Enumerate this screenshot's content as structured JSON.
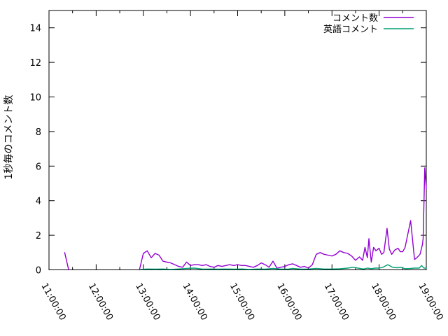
{
  "chart_data": {
    "type": "line",
    "title": "",
    "xlabel": "",
    "ylabel": "1秒毎のコメント数",
    "ylim": [
      0,
      15
    ],
    "yticks": [
      0,
      2,
      4,
      6,
      8,
      10,
      12,
      14
    ],
    "x_hours": [
      11,
      12,
      13,
      14,
      15,
      16,
      17,
      18,
      19
    ],
    "x_tick_labels": [
      "11:00:00",
      "12:00:00",
      "13:00:00",
      "14:00:00",
      "15:00:00",
      "16:00:00",
      "17:00:00",
      "18:00:00",
      "19:00:00"
    ],
    "x_minor_hours": [
      11.5,
      12.5,
      13.5,
      14.5,
      15.5,
      16.5,
      17.5,
      18.5
    ],
    "grid": false,
    "legend_position": "top-right-inside",
    "series": [
      {
        "id": "comments",
        "name": "コメント数",
        "color": "#9400D3",
        "segments": [
          [
            [
              11.333,
              1.0
            ],
            [
              11.417,
              0
            ]
          ],
          [
            [
              12.917,
              0
            ],
            [
              13.0,
              0.95
            ],
            [
              13.083,
              1.1
            ],
            [
              13.167,
              0.7
            ],
            [
              13.25,
              0.95
            ],
            [
              13.333,
              0.85
            ],
            [
              13.417,
              0.5
            ],
            [
              13.5,
              0.45
            ],
            [
              13.583,
              0.4
            ],
            [
              13.667,
              0.3
            ],
            [
              13.75,
              0.2
            ],
            [
              13.833,
              0.15
            ],
            [
              13.917,
              0.45
            ],
            [
              14.0,
              0.25
            ],
            [
              14.083,
              0.3
            ],
            [
              14.167,
              0.3
            ],
            [
              14.25,
              0.25
            ],
            [
              14.333,
              0.3
            ],
            [
              14.417,
              0.2
            ],
            [
              14.5,
              0.15
            ],
            [
              14.583,
              0.25
            ],
            [
              14.667,
              0.2
            ],
            [
              14.75,
              0.25
            ],
            [
              14.833,
              0.3
            ],
            [
              14.917,
              0.25
            ],
            [
              15.0,
              0.3
            ],
            [
              15.083,
              0.25
            ],
            [
              15.167,
              0.25
            ],
            [
              15.25,
              0.2
            ],
            [
              15.333,
              0.15
            ],
            [
              15.417,
              0.25
            ],
            [
              15.5,
              0.4
            ],
            [
              15.583,
              0.3
            ],
            [
              15.667,
              0.15
            ],
            [
              15.75,
              0.5
            ],
            [
              15.833,
              0.1
            ],
            [
              15.917,
              0.15
            ],
            [
              16.0,
              0.2
            ],
            [
              16.083,
              0.3
            ],
            [
              16.167,
              0.35
            ],
            [
              16.25,
              0.25
            ],
            [
              16.333,
              0.15
            ],
            [
              16.417,
              0.2
            ],
            [
              16.5,
              0.1
            ],
            [
              16.583,
              0.3
            ],
            [
              16.667,
              0.9
            ],
            [
              16.75,
              1.0
            ],
            [
              16.833,
              0.9
            ],
            [
              16.917,
              0.85
            ],
            [
              17.0,
              0.8
            ],
            [
              17.083,
              0.9
            ],
            [
              17.167,
              1.1
            ],
            [
              17.25,
              1.0
            ],
            [
              17.333,
              0.95
            ],
            [
              17.417,
              0.8
            ],
            [
              17.5,
              0.55
            ],
            [
              17.583,
              0.75
            ],
            [
              17.65,
              0.55
            ],
            [
              17.7,
              1.3
            ],
            [
              17.75,
              0.7
            ],
            [
              17.783,
              1.8
            ],
            [
              17.833,
              0.45
            ],
            [
              17.883,
              1.3
            ],
            [
              17.933,
              1.1
            ],
            [
              18.0,
              1.25
            ],
            [
              18.05,
              0.9
            ],
            [
              18.1,
              1.0
            ],
            [
              18.167,
              2.4
            ],
            [
              18.217,
              1.2
            ],
            [
              18.267,
              0.9
            ],
            [
              18.333,
              1.15
            ],
            [
              18.4,
              1.25
            ],
            [
              18.45,
              1.05
            ],
            [
              18.5,
              1.05
            ],
            [
              18.55,
              1.3
            ],
            [
              18.667,
              2.85
            ],
            [
              18.75,
              0.6
            ],
            [
              18.8,
              0.7
            ],
            [
              18.867,
              0.9
            ],
            [
              18.917,
              1.45
            ],
            [
              18.933,
              1.8
            ],
            [
              18.967,
              5.9
            ],
            [
              19.0,
              4.7
            ]
          ]
        ]
      },
      {
        "id": "english-comments",
        "name": "英語コメント",
        "color": "#009E73",
        "segments": [
          [
            [
              12.95,
              0.03
            ],
            [
              13.083,
              0.05
            ],
            [
              13.25,
              0.04
            ],
            [
              13.417,
              0.05
            ],
            [
              13.583,
              0.03
            ],
            [
              13.75,
              0.05
            ],
            [
              13.917,
              0.08
            ],
            [
              14.083,
              0.1
            ],
            [
              14.25,
              0.04
            ],
            [
              14.417,
              0.05
            ],
            [
              14.583,
              0.04
            ],
            [
              14.75,
              0.05
            ],
            [
              14.917,
              0.04
            ],
            [
              15.083,
              0.05
            ],
            [
              15.25,
              0.03
            ],
            [
              15.417,
              0.05
            ],
            [
              15.583,
              0.04
            ],
            [
              15.75,
              0.08
            ],
            [
              15.917,
              0.04
            ],
            [
              16.083,
              0.05
            ],
            [
              16.167,
              0.08
            ],
            [
              16.333,
              0.04
            ],
            [
              16.5,
              0.05
            ],
            [
              16.667,
              0.08
            ],
            [
              16.833,
              0.05
            ],
            [
              17.0,
              0.05
            ],
            [
              17.167,
              0.06
            ],
            [
              17.333,
              0.1
            ],
            [
              17.45,
              0.15
            ],
            [
              17.55,
              0.1
            ],
            [
              17.667,
              0.05
            ],
            [
              17.75,
              0.1
            ],
            [
              17.833,
              0.07
            ],
            [
              17.917,
              0.1
            ],
            [
              18.0,
              0.1
            ],
            [
              18.083,
              0.15
            ],
            [
              18.183,
              0.3
            ],
            [
              18.283,
              0.15
            ],
            [
              18.383,
              0.12
            ],
            [
              18.45,
              0.15
            ],
            [
              18.55,
              0.07
            ],
            [
              18.667,
              0.08
            ],
            [
              18.75,
              0.1
            ],
            [
              18.85,
              0.1
            ],
            [
              18.9,
              0.25
            ],
            [
              18.95,
              0.1
            ],
            [
              19.0,
              0.1
            ]
          ]
        ]
      }
    ]
  }
}
